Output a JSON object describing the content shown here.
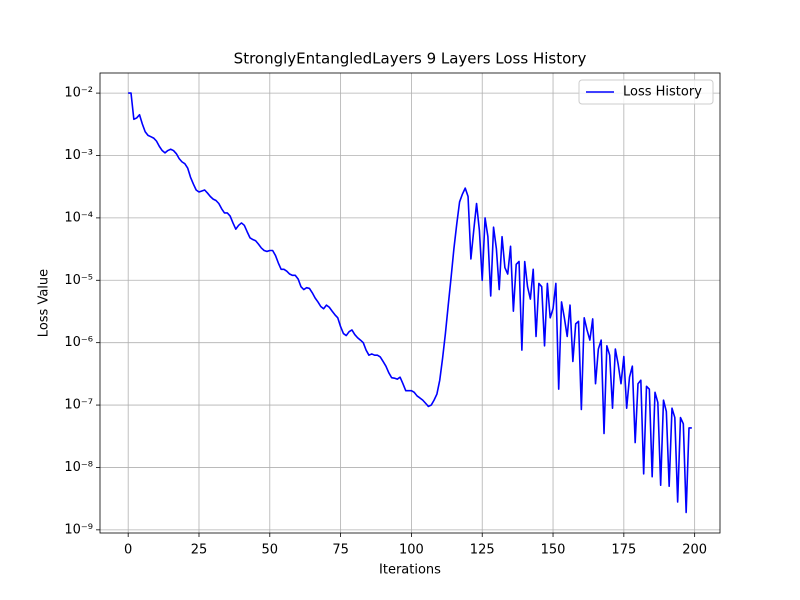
{
  "chart_data": {
    "type": "line",
    "title": "StronglyEntangledLayers 9 Layers Loss History",
    "xlabel": "Iterations",
    "ylabel": "Loss Value",
    "xlim": [
      -9.95,
      208.95
    ],
    "xticks": [
      0,
      25,
      50,
      75,
      100,
      125,
      150,
      175,
      200
    ],
    "ylim": [
      8.9e-10,
      0.021
    ],
    "yscale": "log",
    "yticks": [
      {
        "value": 1e-09,
        "label": "10⁻⁹"
      },
      {
        "value": 1e-08,
        "label": "10⁻⁸"
      },
      {
        "value": 1e-07,
        "label": "10⁻⁷"
      },
      {
        "value": 1e-06,
        "label": "10⁻⁶"
      },
      {
        "value": 1e-05,
        "label": "10⁻⁵"
      },
      {
        "value": 0.0001,
        "label": "10⁻⁴"
      },
      {
        "value": 0.001,
        "label": "10⁻³"
      },
      {
        "value": 0.01,
        "label": "10⁻²"
      }
    ],
    "grid": true,
    "legend": "upper right",
    "x": [
      0,
      1,
      2,
      3,
      4,
      5,
      6,
      7,
      8,
      9,
      10,
      11,
      12,
      13,
      14,
      15,
      16,
      17,
      18,
      19,
      20,
      21,
      22,
      23,
      24,
      25,
      26,
      27,
      28,
      29,
      30,
      31,
      32,
      33,
      34,
      35,
      36,
      37,
      38,
      39,
      40,
      41,
      42,
      43,
      44,
      45,
      46,
      47,
      48,
      49,
      50,
      51,
      52,
      53,
      54,
      55,
      56,
      57,
      58,
      59,
      60,
      61,
      62,
      63,
      64,
      65,
      66,
      67,
      68,
      69,
      70,
      71,
      72,
      73,
      74,
      75,
      76,
      77,
      78,
      79,
      80,
      81,
      82,
      83,
      84,
      85,
      86,
      87,
      88,
      89,
      90,
      91,
      92,
      93,
      94,
      95,
      96,
      97,
      98,
      99,
      100,
      101,
      102,
      103,
      104,
      105,
      106,
      107,
      108,
      109,
      110,
      111,
      112,
      113,
      114,
      115,
      116,
      117,
      118,
      119,
      120,
      121,
      122,
      123,
      124,
      125,
      126,
      127,
      128,
      129,
      130,
      131,
      132,
      133,
      134,
      135,
      136,
      137,
      138,
      139,
      140,
      141,
      142,
      143,
      144,
      145,
      146,
      147,
      148,
      149,
      150,
      151,
      152,
      153,
      154,
      155,
      156,
      157,
      158,
      159,
      160,
      161,
      162,
      163,
      164,
      165,
      166,
      167,
      168,
      169,
      170,
      171,
      172,
      173,
      174,
      175,
      176,
      177,
      178,
      179,
      180,
      181,
      182,
      183,
      184,
      185,
      186,
      187,
      188,
      189,
      190,
      191,
      192,
      193,
      194,
      195,
      196,
      197,
      198,
      199
    ],
    "series": [
      {
        "name": "Loss History",
        "color": "#0000ff",
        "values": [
          0.01,
          0.01,
          0.0038,
          0.004,
          0.0045,
          0.0032,
          0.0024,
          0.0021,
          0.002,
          0.0019,
          0.0017,
          0.0014,
          0.0012,
          0.0011,
          0.0012,
          0.00126,
          0.0012,
          0.00107,
          0.00089,
          0.00079,
          0.00074,
          0.00063,
          0.00045,
          0.00035,
          0.00028,
          0.00026,
          0.00027,
          0.00028,
          0.00025,
          0.00022,
          0.0002,
          0.00019,
          0.00017,
          0.00014,
          0.00012,
          0.00012,
          0.000107,
          8.3e-05,
          6.6e-05,
          7.6e-05,
          8.3e-05,
          7.6e-05,
          6e-05,
          4.8e-05,
          4.5e-05,
          4.3e-05,
          3.8e-05,
          3.3e-05,
          3e-05,
          2.9e-05,
          3e-05,
          3e-05,
          2.5e-05,
          1.9e-05,
          1.5e-05,
          1.5e-05,
          1.4e-05,
          1.26e-05,
          1.2e-05,
          1.2e-05,
          1.05e-05,
          7.9e-06,
          7.1e-06,
          7.6e-06,
          7.4e-06,
          6.3e-06,
          5.2e-06,
          4.5e-06,
          3.8e-06,
          3.5e-06,
          4e-06,
          3.7e-06,
          3.2e-06,
          2.8e-06,
          2.5e-06,
          1.8e-06,
          1.4e-06,
          1.3e-06,
          1.5e-06,
          1.6e-06,
          1.35e-06,
          1.2e-06,
          1.1e-06,
          1e-06,
          7.6e-07,
          6.3e-07,
          6.6e-07,
          6.3e-07,
          6.3e-07,
          5.9e-07,
          5e-07,
          4.2e-07,
          3.3e-07,
          2.75e-07,
          2.7e-07,
          2.6e-07,
          2.8e-07,
          2.2e-07,
          1.7e-07,
          1.7e-07,
          1.7e-07,
          1.6e-07,
          1.4e-07,
          1.3e-07,
          1.2e-07,
          1.07e-07,
          9.5e-08,
          1e-07,
          1.2e-07,
          1.5e-07,
          2.5e-07,
          5.6e-07,
          1.4e-06,
          4e-06,
          1.1e-05,
          3.2e-05,
          7.9e-05,
          0.00018,
          0.00024,
          0.0003,
          0.00022,
          2.2e-05,
          6.3e-05,
          0.00017,
          6.3e-05,
          1e-05,
          0.0001,
          5e-05,
          5.6e-06,
          7.1e-05,
          3.2e-05,
          7.1e-06,
          5e-05,
          1.6e-05,
          1.26e-05,
          3.5e-05,
          3.2e-06,
          1.8e-05,
          2e-05,
          7.6e-07,
          2e-05,
          7.9e-06,
          5e-06,
          1.5e-05,
          1.26e-06,
          8.9e-06,
          7.9e-06,
          8.9e-07,
          8.9e-06,
          2.5e-06,
          3.5e-06,
          8.9e-06,
          1.8e-07,
          4.5e-06,
          2.5e-06,
          1.26e-06,
          4e-06,
          5e-07,
          2e-06,
          2.2e-06,
          8.5e-08,
          2.5e-06,
          1.6e-06,
          1.1e-06,
          2.4e-06,
          2.2e-07,
          7.9e-07,
          1.1e-06,
          3.5e-08,
          8.9e-07,
          6.3e-07,
          8.9e-08,
          7.9e-07,
          4.5e-07,
          2.2e-07,
          6e-07,
          8.9e-08,
          2.8e-07,
          4.2e-07,
          2.5e-08,
          2.2e-07,
          2.5e-07,
          7.9e-09,
          2e-07,
          1.8e-07,
          7.1e-09,
          1.6e-07,
          1.1e-07,
          5.2e-09,
          1.2e-07,
          7.9e-08,
          5e-09,
          8.9e-08,
          6.3e-08,
          2.8e-09,
          6.3e-08,
          5e-08,
          1.9e-09,
          4.3e-08,
          4.3e-08
        ]
      }
    ]
  }
}
